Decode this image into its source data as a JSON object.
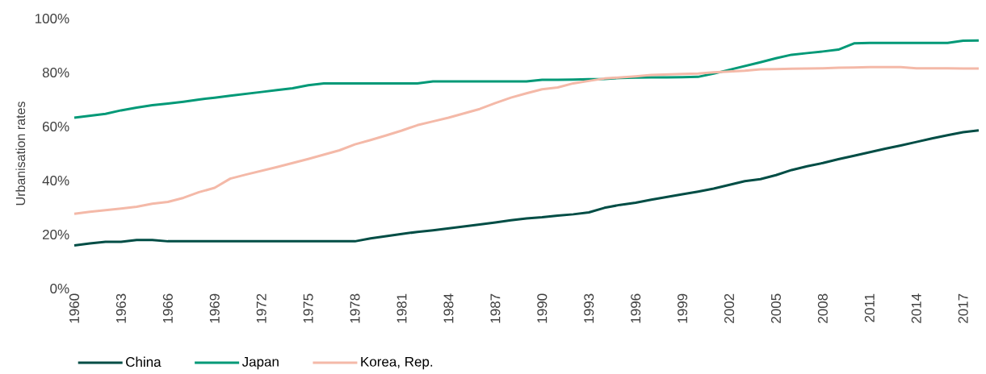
{
  "chart_data": {
    "type": "line",
    "ylabel": "Urbanisation rates",
    "categories": [
      "1960",
      null,
      null,
      "1963",
      null,
      null,
      "1966",
      null,
      null,
      "1969",
      null,
      null,
      "1972",
      null,
      null,
      "1975",
      null,
      null,
      "1978",
      null,
      null,
      "1981",
      null,
      null,
      "1984",
      null,
      null,
      "1987",
      null,
      null,
      "1990",
      null,
      null,
      "1993",
      null,
      null,
      "1996",
      null,
      null,
      "1999",
      null,
      null,
      "2002",
      null,
      null,
      "2005",
      null,
      null,
      "2008",
      null,
      null,
      "2011",
      null,
      null,
      "2014",
      null,
      null,
      "2017",
      null
    ],
    "ylim": [
      0,
      100
    ],
    "yticks": [
      {
        "value": 0,
        "label": "0%"
      },
      {
        "value": 20,
        "label": "20%"
      },
      {
        "value": 40,
        "label": "40%"
      },
      {
        "value": 60,
        "label": "60%"
      },
      {
        "value": 80,
        "label": "80%"
      },
      {
        "value": 100,
        "label": "100%"
      }
    ],
    "grid": false,
    "legend": "bottom",
    "marker": "none",
    "line_style": "solid",
    "series": [
      {
        "name": "China",
        "color": "#004d45",
        "values": [
          16,
          16.7,
          17.3,
          17.3,
          18,
          18,
          17.5,
          17.5,
          17.5,
          17.5,
          17.5,
          17.5,
          17.5,
          17.5,
          17.5,
          17.5,
          17.5,
          17.5,
          17.5,
          18.6,
          19.4,
          20.2,
          21,
          21.6,
          22.3,
          23,
          23.7,
          24.5,
          25.3,
          26,
          26.4,
          27,
          27.5,
          28.2,
          29.9,
          31,
          31.8,
          32.9,
          33.9,
          34.9,
          35.9,
          37,
          38.4,
          39.8,
          40.5,
          42,
          43.9,
          45.3,
          46.5,
          47.9,
          49.2,
          50.5,
          51.8,
          53,
          54.3,
          55.6,
          56.8,
          57.9,
          58.6
        ]
      },
      {
        "name": "Japan",
        "color": "#009977",
        "values": [
          63.3,
          64,
          64.7,
          66,
          67,
          67.9,
          68.5,
          69.2,
          70,
          70.7,
          71.4,
          72.1,
          72.8,
          73.5,
          74.2,
          75.3,
          76,
          76,
          76,
          76,
          76,
          76,
          76,
          76.7,
          76.7,
          76.7,
          76.7,
          76.7,
          76.7,
          76.7,
          77.3,
          77.3,
          77.4,
          77.5,
          77.6,
          78,
          78.1,
          78.2,
          78.2,
          78.3,
          78.4,
          79.6,
          81,
          82.4,
          83.8,
          85.3,
          86.6,
          87.2,
          87.8,
          88.5,
          90.8,
          91,
          91,
          91,
          91,
          91,
          91,
          91.8,
          91.9
        ]
      },
      {
        "name": "Korea, Rep.",
        "color": "#f4b9a8",
        "values": [
          27.7,
          28.4,
          29,
          29.6,
          30.3,
          31.4,
          32.1,
          33.6,
          35.7,
          37.3,
          40.7,
          42.2,
          43.6,
          45,
          46.5,
          48,
          49.6,
          51.2,
          53.4,
          55,
          56.7,
          58.5,
          60.5,
          61.9,
          63.3,
          64.9,
          66.5,
          68.7,
          70.7,
          72.3,
          73.8,
          74.5,
          76,
          76.9,
          77.8,
          78.2,
          78.6,
          79.1,
          79.3,
          79.5,
          79.6,
          80.1,
          80.4,
          80.7,
          81.2,
          81.3,
          81.4,
          81.5,
          81.6,
          81.8,
          81.9,
          82,
          82,
          82,
          81.6,
          81.6,
          81.6,
          81.5,
          81.5
        ]
      }
    ]
  }
}
